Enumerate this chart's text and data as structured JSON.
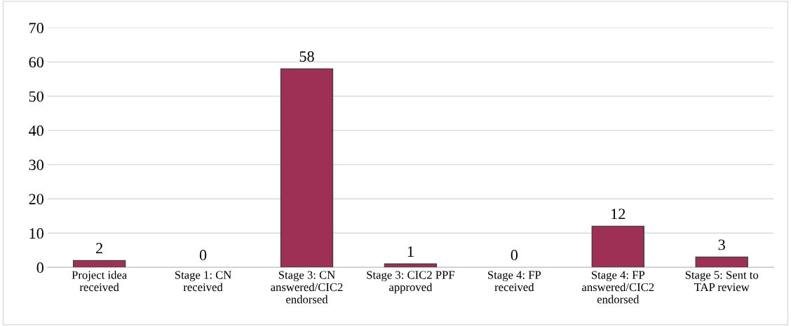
{
  "chart_data": {
    "type": "bar",
    "categories": [
      "Project idea\nreceived",
      "Stage 1: CN\nreceived",
      "Stage 3: CN\nanswered/CIC2\nendorsed",
      "Stage 3: CIC2 PPF\napproved",
      "Stage 4: FP\nreceived",
      "Stage 4: FP\nanswered/CIC2\nendorsed",
      "Stage 5: Sent to\nTAP review"
    ],
    "values": [
      2,
      0,
      58,
      1,
      0,
      12,
      3
    ],
    "color": "#9e3056",
    "ylim": [
      0,
      70
    ],
    "yticks": [
      0,
      10,
      20,
      30,
      40,
      50,
      60,
      70
    ],
    "grid": "y",
    "data_labels": true,
    "legend": false
  }
}
